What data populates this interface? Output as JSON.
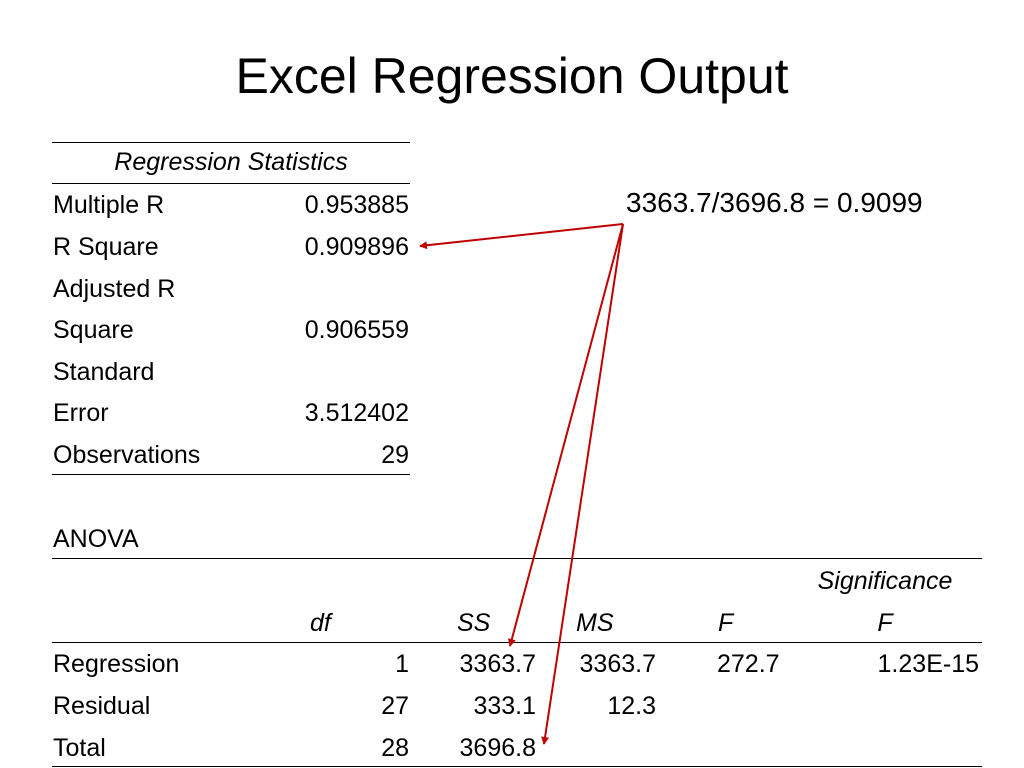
{
  "slide": {
    "title": "Excel Regression Output"
  },
  "calculation": "3363.7/3696.8 = 0.9099",
  "regression_statistics": {
    "header": "Regression Statistics",
    "rows": [
      {
        "label_lines": [
          "Multiple R"
        ],
        "value": "0.953885"
      },
      {
        "label_lines": [
          "R Square"
        ],
        "value": "0.909896"
      },
      {
        "label_lines": [
          "Adjusted R",
          "Square"
        ],
        "value": "0.906559"
      },
      {
        "label_lines": [
          "Standard",
          "Error"
        ],
        "value": "3.512402"
      },
      {
        "label_lines": [
          "Observations"
        ],
        "value": "29"
      }
    ]
  },
  "anova": {
    "label": "ANOVA",
    "headers": {
      "df": "df",
      "ss": "SS",
      "ms": "MS",
      "f": "F",
      "sigf_line1": "Significance",
      "sigf_line2": "F"
    },
    "rows": [
      {
        "source": "Regression",
        "df": "1",
        "ss": "3363.7",
        "ms": "3363.7",
        "f": "272.7",
        "sigf": "1.23E-15"
      },
      {
        "source": "Residual",
        "df": "27",
        "ss": "333.1",
        "ms": "12.3",
        "f": "",
        "sigf": ""
      },
      {
        "source": "Total",
        "df": "28",
        "ss": "3696.8",
        "ms": "",
        "f": "",
        "sigf": ""
      }
    ]
  },
  "colors": {
    "arrow": "#c00000",
    "text": "#000000",
    "background": "#ffffff"
  }
}
